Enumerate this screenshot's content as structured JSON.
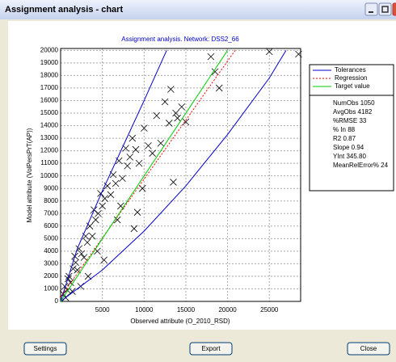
{
  "window": {
    "title": "Assignment analysis - chart",
    "buttons": [
      "Settings",
      "Export",
      "Close"
    ]
  },
  "chart_data": {
    "type": "scatter",
    "title": "Assignment analysis. Network: DSS2_66",
    "x_label": "Observed attribute (O_2010_RSD)",
    "y_label": "Model attribute (VolPersPrT(AP))",
    "xlim": [
      0,
      28750
    ],
    "ylim": [
      0,
      20150
    ],
    "xticks": [
      5000,
      10000,
      15000,
      20000,
      25000
    ],
    "yticks": [
      0,
      1000,
      2000,
      3000,
      4000,
      5000,
      6000,
      7000,
      8000,
      9000,
      10000,
      11000,
      12000,
      13000,
      14000,
      15000,
      16000,
      17000,
      18000,
      19000,
      20000
    ],
    "grid": true,
    "points": {
      "color": "#000000",
      "x": [
        300,
        500,
        800,
        1000,
        1200,
        1500,
        1800,
        2000,
        2200,
        2500,
        2800,
        3000,
        3200,
        3500,
        3800,
        4000,
        4200,
        4500,
        4800,
        5000,
        5300,
        5600,
        6000,
        6300,
        6600,
        7000,
        7400,
        7800,
        8000,
        8300,
        8600,
        9000,
        9400,
        9800,
        10000,
        10500,
        11000,
        11500,
        12000,
        12500,
        13000,
        13500,
        14000,
        14500,
        15000,
        18000,
        18500,
        19000,
        25000,
        28500,
        600,
        900,
        1400,
        1700,
        2400,
        3300,
        4400,
        5200,
        6800,
        7200,
        8800,
        9200,
        13200,
        13800
      ],
      "values": [
        600,
        1200,
        900,
        2000,
        1500,
        2600,
        3100,
        2500,
        4200,
        3800,
        3500,
        5200,
        4700,
        6000,
        5200,
        7300,
        6500,
        7000,
        8600,
        7600,
        8200,
        9200,
        8500,
        10100,
        9400,
        11200,
        9800,
        12200,
        10800,
        11500,
        13000,
        12100,
        11000,
        9000,
        13800,
        12400,
        11800,
        14800,
        12600,
        15900,
        14200,
        9500,
        14600,
        15500,
        14300,
        19500,
        18300,
        17000,
        19900,
        19700,
        300,
        1800,
        800,
        3600,
        1200,
        2000,
        4000,
        3300,
        6500,
        7600,
        5800,
        7100,
        16900,
        15000
      ]
    },
    "series": [
      {
        "name": "Tolerances",
        "color": "#0000cc",
        "dashed": false,
        "x": [
          0,
          2000,
          5000,
          10000,
          12700
        ],
        "values": [
          0,
          4200,
          8800,
          16000,
          20000
        ]
      },
      {
        "name": null,
        "color": "#0000cc",
        "dashed": false,
        "x": [
          0,
          5000,
          10000,
          15000,
          20000,
          25000,
          27000
        ],
        "values": [
          0,
          2500,
          5600,
          9200,
          13300,
          17800,
          20000
        ]
      },
      {
        "name": "Regression",
        "color": "#ff0000",
        "dashed": true,
        "x": [
          0,
          20910
        ],
        "values": [
          345.8,
          20000
        ]
      },
      {
        "name": "Target value",
        "color": "#00cc00",
        "dashed": false,
        "x": [
          0,
          20000
        ],
        "values": [
          0,
          20000
        ]
      }
    ],
    "statistics": [
      "NumObs 1050",
      "AvgObs 4182",
      "%RMSE 33",
      "% In 88",
      "R2 0.87",
      "Slope 0.94",
      "YInt 345.80",
      "MeanRelError% 24"
    ]
  }
}
